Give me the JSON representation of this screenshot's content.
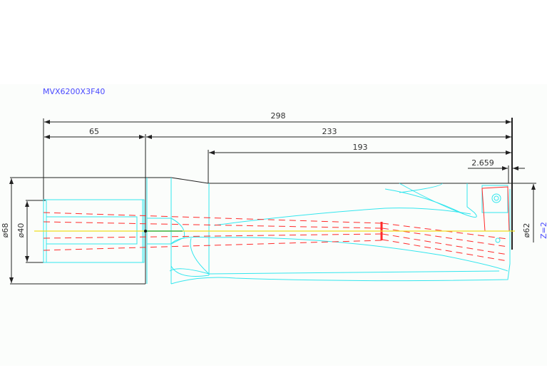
{
  "drawing": {
    "part_number": "MVX6200X3F40",
    "dimensions": {
      "overall_length": "298",
      "shank_length": "65",
      "body_length": "233",
      "flute_length": "193",
      "tip_offset": "2.659",
      "shank_diameter": "ø68",
      "bore_diameter": "ø40",
      "cutting_diameter": "ø62"
    },
    "flutes": "Z=2"
  },
  "colors": {
    "outline": "#222222",
    "geometry": "#33e6ee",
    "coolant": "#ff2a2a",
    "centerline": "#f0e020",
    "annotation": "#4a4aff"
  }
}
